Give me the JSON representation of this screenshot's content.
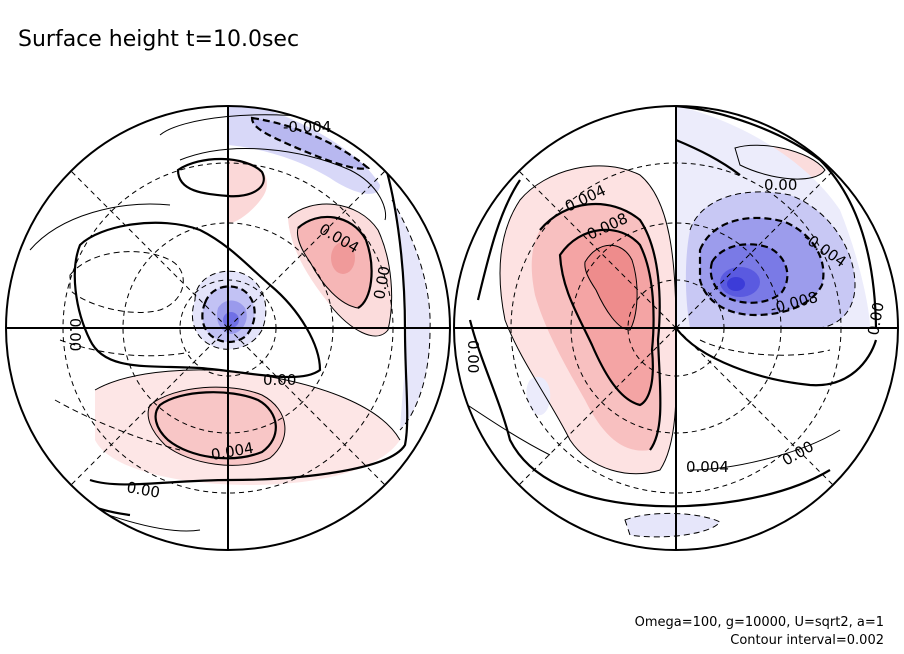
{
  "chart_data": {
    "type": "contour",
    "title": "Surface height t=10.0sec",
    "projection": "polar (two hemispheres)",
    "contour_interval": 0.002,
    "annotations": [
      "Omega=100, g=10000, U=sqrt2, a=1",
      "Contour interval=0.002"
    ],
    "colors": {
      "positive_fill": "#f08080",
      "negative_fill": "#5a5aee",
      "positive_line": "#000000",
      "negative_line": "#000000"
    },
    "hemispheres": [
      {
        "name": "left",
        "contour_labels": [
          "-0.004",
          "0.004",
          "0.00",
          "0.00",
          "0.00",
          "0.004",
          "0.00"
        ]
      },
      {
        "name": "right",
        "contour_labels": [
          "0.004",
          "0.008",
          "0.00",
          "-0.004",
          "-0.008",
          "0.00",
          "0.00",
          "0.004",
          "0.00"
        ]
      }
    ]
  }
}
